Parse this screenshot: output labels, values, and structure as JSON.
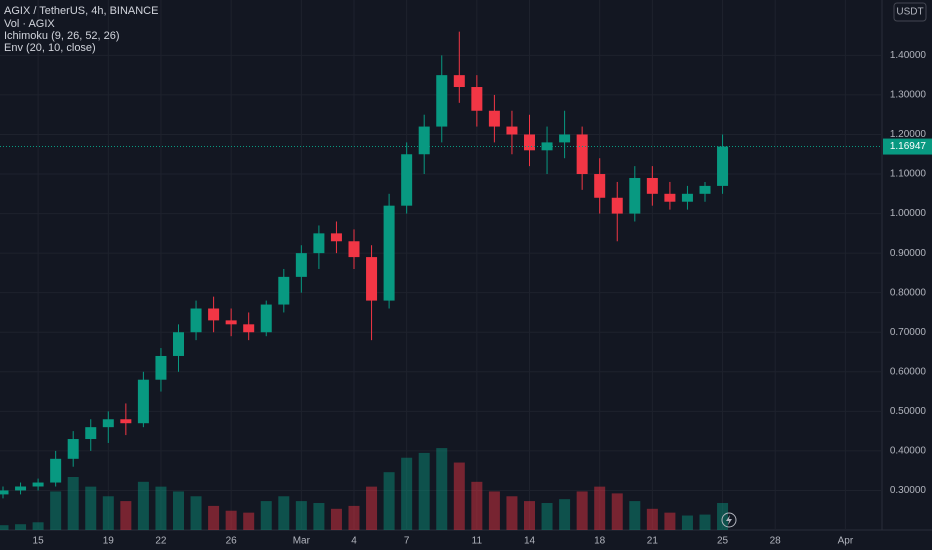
{
  "chart_data": {
    "type": "candlestick",
    "title": "AGIX / TetherUS, 4h, BINANCE",
    "indicators": [
      "Vol · AGIX",
      "Ichimoku (9, 26, 52, 26)",
      "Env (20, 10, close)"
    ],
    "currency": "USDT",
    "up_color": "#089981",
    "down_color": "#f23645",
    "categories": [
      null,
      null,
      "15",
      null,
      null,
      null,
      "19",
      null,
      null,
      "22",
      null,
      null,
      null,
      "26",
      null,
      null,
      null,
      "Mar",
      null,
      null,
      "4",
      null,
      null,
      "7",
      null,
      null,
      null,
      "11",
      null,
      null,
      "14",
      null,
      null,
      null,
      "18",
      null,
      null,
      "21",
      null,
      null,
      null,
      "25",
      null,
      null,
      "28",
      null,
      null,
      null,
      "Apr"
    ],
    "open": [
      0.29,
      0.3,
      0.31,
      0.32,
      0.38,
      0.43,
      0.46,
      0.48,
      0.47,
      0.58,
      0.64,
      0.7,
      0.76,
      0.73,
      0.72,
      0.7,
      0.77,
      0.84,
      0.9,
      0.95,
      0.93,
      0.89,
      0.78,
      1.02,
      1.15,
      1.22,
      1.35,
      1.32,
      1.26,
      1.22,
      1.2,
      1.16,
      1.18,
      1.2,
      1.1,
      1.04,
      1.0,
      1.09,
      1.05,
      1.03,
      1.05,
      1.07,
      null,
      null,
      null,
      null,
      null,
      null,
      null
    ],
    "high": [
      0.31,
      0.32,
      0.33,
      0.4,
      0.45,
      0.48,
      0.5,
      0.52,
      0.6,
      0.66,
      0.72,
      0.78,
      0.79,
      0.76,
      0.75,
      0.78,
      0.86,
      0.92,
      0.97,
      0.98,
      0.96,
      0.92,
      1.05,
      1.18,
      1.25,
      1.4,
      1.46,
      1.35,
      1.3,
      1.26,
      1.25,
      1.22,
      1.26,
      1.22,
      1.14,
      1.08,
      1.12,
      1.12,
      1.08,
      1.07,
      1.08,
      1.2,
      null,
      null,
      null,
      null,
      null,
      null,
      null
    ],
    "low": [
      0.28,
      0.29,
      0.3,
      0.31,
      0.36,
      0.4,
      0.42,
      0.44,
      0.46,
      0.55,
      0.6,
      0.68,
      0.7,
      0.69,
      0.68,
      0.69,
      0.75,
      0.8,
      0.86,
      0.9,
      0.86,
      0.68,
      0.76,
      1.0,
      1.1,
      1.18,
      1.28,
      1.22,
      1.18,
      1.15,
      1.12,
      1.1,
      1.14,
      1.06,
      1.0,
      0.93,
      0.98,
      1.02,
      1.01,
      1.01,
      1.03,
      1.05,
      null,
      null,
      null,
      null,
      null,
      null,
      null
    ],
    "close": [
      0.3,
      0.31,
      0.32,
      0.38,
      0.43,
      0.46,
      0.48,
      0.47,
      0.58,
      0.64,
      0.7,
      0.76,
      0.73,
      0.72,
      0.7,
      0.77,
      0.84,
      0.9,
      0.95,
      0.93,
      0.89,
      0.78,
      1.02,
      1.15,
      1.22,
      1.35,
      1.32,
      1.26,
      1.22,
      1.2,
      1.16,
      1.18,
      1.2,
      1.1,
      1.04,
      1.0,
      1.09,
      1.05,
      1.03,
      1.05,
      1.07,
      1.16947,
      null,
      null,
      null,
      null,
      null,
      null,
      null
    ],
    "volume": [
      5,
      6,
      8,
      40,
      55,
      45,
      35,
      30,
      50,
      45,
      40,
      35,
      25,
      20,
      18,
      30,
      35,
      30,
      28,
      22,
      25,
      45,
      60,
      75,
      80,
      85,
      70,
      50,
      40,
      35,
      30,
      28,
      32,
      40,
      45,
      38,
      30,
      22,
      18,
      15,
      16,
      28,
      null,
      null,
      null,
      null,
      null,
      null,
      null
    ],
    "ylim": [
      0.2,
      1.54
    ],
    "yticks": [
      {
        "value": 0.3,
        "label": "0.30000"
      },
      {
        "value": 0.4,
        "label": "0.40000"
      },
      {
        "value": 0.5,
        "label": "0.50000"
      },
      {
        "value": 0.6,
        "label": "0.60000"
      },
      {
        "value": 0.7,
        "label": "0.70000"
      },
      {
        "value": 0.8,
        "label": "0.80000"
      },
      {
        "value": 0.9,
        "label": "0.90000"
      },
      {
        "value": 1.0,
        "label": "1.00000"
      },
      {
        "value": 1.1,
        "label": "1.10000"
      },
      {
        "value": 1.2,
        "label": "1.20000"
      },
      {
        "value": 1.3,
        "label": "1.30000"
      },
      {
        "value": 1.4,
        "label": "1.40000"
      }
    ],
    "y2lim": [
      0,
      550
    ],
    "grid": true
  }
}
